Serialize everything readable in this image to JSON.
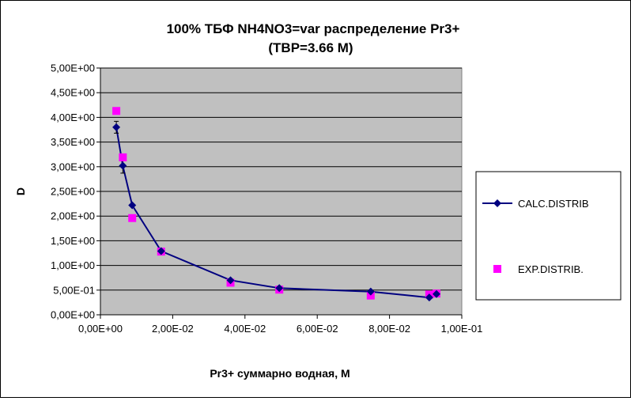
{
  "chart_data": {
    "type": "scatter",
    "title": [
      "100%  ТБФ  NH4NO3=var распределение Pr3+",
      "(TBP=3.66 M)"
    ],
    "xlabel": "Pr3+ суммарно   водная, М",
    "ylabel": "D",
    "xlim": [
      0,
      0.1
    ],
    "ylim": [
      0,
      5
    ],
    "x_ticks": [
      0,
      0.02,
      0.04,
      0.06,
      0.08,
      0.1
    ],
    "x_tick_labels": [
      "0,00E+00",
      "2,00E-02",
      "4,00E-02",
      "6,00E-02",
      "8,00E-02",
      "1,00E-01"
    ],
    "y_ticks": [
      0,
      0.5,
      1,
      1.5,
      2,
      2.5,
      3,
      3.5,
      4,
      4.5,
      5
    ],
    "y_tick_labels": [
      "0,00E+00",
      "5,00E-01",
      "1,00E+00",
      "1,50E+00",
      "2,00E+00",
      "2,50E+00",
      "3,00E+00",
      "3,50E+00",
      "4,00E+00",
      "4,50E+00",
      "5,00E+00"
    ],
    "grid": "horizontal",
    "legend_position": "right",
    "series": [
      {
        "name": "CALC.DISTRIB",
        "style": "line-diamond",
        "color": "#000080",
        "x": [
          0.0044,
          0.0062,
          0.0088,
          0.0168,
          0.036,
          0.0495,
          0.0748,
          0.091,
          0.093
        ],
        "y": [
          3.8,
          3.02,
          2.22,
          1.29,
          0.7,
          0.54,
          0.47,
          0.35,
          0.42
        ],
        "error": [
          0.12,
          0.15,
          0,
          0,
          0,
          0,
          0,
          0,
          0
        ]
      },
      {
        "name": "EXP.DISTRIB.",
        "style": "square-markers",
        "color": "#ff00ff",
        "x": [
          0.0044,
          0.0062,
          0.0088,
          0.0168,
          0.036,
          0.0495,
          0.0748,
          0.091,
          0.093
        ],
        "y": [
          4.13,
          3.19,
          1.96,
          1.28,
          0.65,
          0.51,
          0.39,
          0.41,
          0.43
        ]
      }
    ]
  },
  "colors": {
    "plot_background": "#c0c0c0",
    "grid": "#000000",
    "calc_series": "#000080",
    "exp_series": "#ff00ff"
  }
}
